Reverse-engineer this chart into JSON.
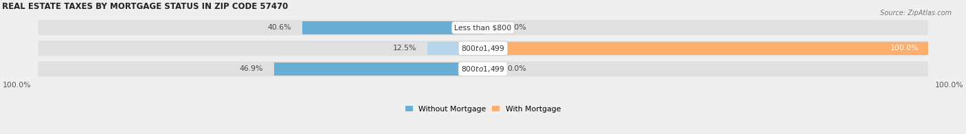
{
  "title": "REAL ESTATE TAXES BY MORTGAGE STATUS IN ZIP CODE 57470",
  "source": "Source: ZipAtlas.com",
  "rows": [
    {
      "label": "Less than $800",
      "without_mortgage": 40.6,
      "with_mortgage": 0.0
    },
    {
      "label": "$800 to $1,499",
      "without_mortgage": 12.5,
      "with_mortgage": 100.0
    },
    {
      "label": "$800 to $1,499",
      "without_mortgage": 46.9,
      "with_mortgage": 0.0
    }
  ],
  "color_without_1": "#6aaed6",
  "color_without_2": "#b8d4ea",
  "color_without_3": "#6aaed6",
  "color_with_1": "#fdd0a2",
  "color_with_2": "#fdae6b",
  "color_with_3": "#fdd0a2",
  "max_val": 100.0,
  "x_left_label": "100.0%",
  "x_right_label": "100.0%",
  "legend_without": "Without Mortgage",
  "legend_with": "With Mortgage",
  "legend_color_without": "#6aaed6",
  "legend_color_with": "#fdae6b",
  "bg_color": "#efefef",
  "bar_bg_color": "#e0e0e0",
  "bar_row_bg": "#e8e8e8",
  "title_fontsize": 8.5,
  "source_fontsize": 7,
  "label_fontsize": 7.8,
  "bar_height": 0.62,
  "left_pct_labels": [
    "40.6%",
    "12.5%",
    "46.9%"
  ],
  "right_pct_labels": [
    "0.0%",
    "100.0%",
    "0.0%"
  ]
}
